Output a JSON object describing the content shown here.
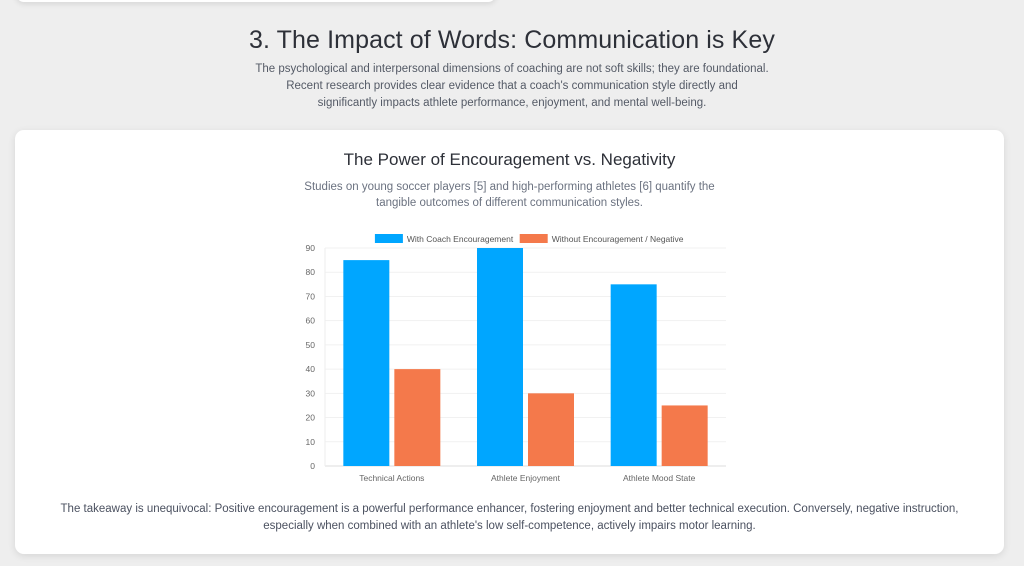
{
  "section": {
    "title": "3. The Impact of Words: Communication is Key",
    "intro_lines": [
      "The psychological and interpersonal dimensions of coaching are not soft skills; they are foundational.",
      "Recent research provides clear evidence that a coach's communication style directly and",
      "significantly impacts athlete performance, enjoyment, and mental well-being."
    ]
  },
  "card": {
    "title": "The Power of Encouragement vs. Negativity",
    "subtitle_lines": [
      "Studies on young soccer players [5] and high-performing athletes [6] quantify the",
      "tangible outcomes of different communication styles."
    ],
    "takeaway_lines": [
      "The takeaway is unequivocal: Positive encouragement is a powerful performance enhancer, fostering enjoyment and better technical execution. Conversely, negative instruction,",
      "especially when combined with an athlete's low self-competence, actively impairs motor learning."
    ]
  },
  "chart_data": {
    "type": "bar",
    "title": "",
    "xlabel": "",
    "ylabel": "",
    "categories": [
      "Technical Actions",
      "Athlete Enjoyment",
      "Athlete Mood State"
    ],
    "series": [
      {
        "name": "With Coach Encouragement",
        "color": "#00a6ff",
        "values": [
          85,
          90,
          75
        ]
      },
      {
        "name": "Without Encouragement / Negative",
        "color": "#f4794b",
        "values": [
          40,
          30,
          25
        ]
      }
    ],
    "ylim": [
      0,
      90
    ],
    "yticks": [
      0,
      10,
      20,
      30,
      40,
      50,
      60,
      70,
      80,
      90
    ],
    "grid": true,
    "legend_position": "top-center"
  }
}
